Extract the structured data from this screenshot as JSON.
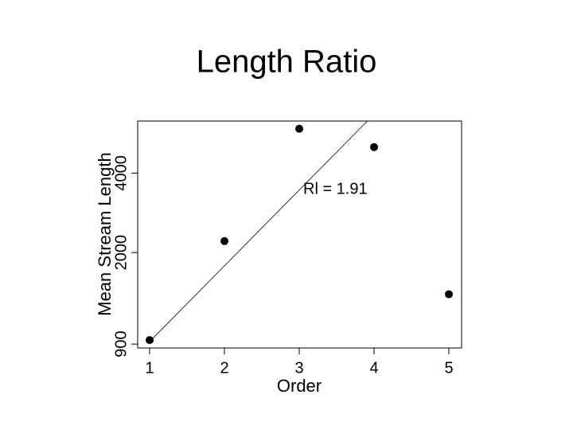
{
  "chart_data": {
    "type": "scatter",
    "title": "Length Ratio",
    "x_label": "Order",
    "y_label": "Mean Stream Length",
    "x": [
      1,
      2,
      3,
      4,
      5
    ],
    "values": [
      932,
      2210,
      5890,
      5020,
      1390
    ],
    "color": "#000000",
    "xlim": [
      0.84,
      5.17
    ],
    "ylim": [
      870,
      6300
    ],
    "y_log": true,
    "xticks": [
      1,
      2,
      3,
      4,
      5
    ],
    "yticks": [
      900,
      2000,
      4000
    ],
    "fit_line": {
      "x": [
        1,
        3.91
      ],
      "y": [
        920,
        6300
      ]
    },
    "annotation": "Rl = 1.91"
  }
}
